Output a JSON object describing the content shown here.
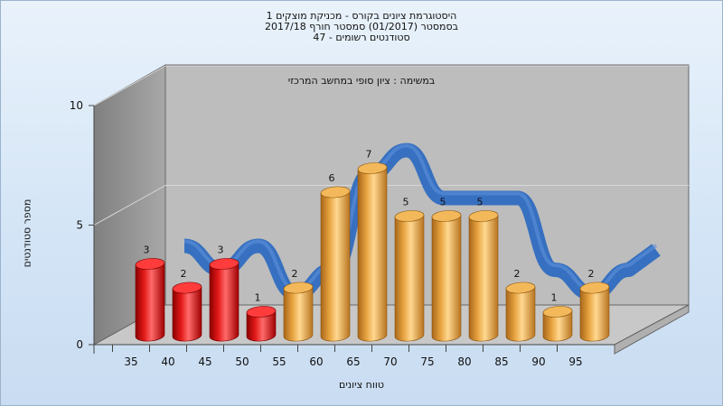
{
  "title": {
    "line1": "היסטוגרמת ציונים בקורס - מכניקת מוצקים 1",
    "line2": "בסמסטר  (01/2017)  סמסטר חורף 2017/18",
    "line3": "סטודנטים רשומים - 47"
  },
  "chart_data": {
    "type": "bar",
    "title": "היסטוגרמת ציונים בקורס - מכניקת מוצקים 1",
    "subtitle": "במשימה : ציון סופי במחשב המרכזי",
    "xlabel": "טווח ציונים",
    "ylabel": "מספר סטודנטים",
    "ylim": [
      0,
      10
    ],
    "yticks": [
      0,
      5,
      10
    ],
    "categories": [
      "35",
      "40",
      "45",
      "50",
      "55",
      "60",
      "65",
      "70",
      "75",
      "80",
      "85",
      "90",
      "95"
    ],
    "values": [
      3,
      2,
      3,
      1,
      2,
      6,
      7,
      5,
      5,
      5,
      2,
      1,
      2
    ],
    "bar_colors": [
      "#e01010",
      "#e01010",
      "#e01010",
      "#e01010",
      "#e8a440",
      "#e8a440",
      "#e8a440",
      "#e8a440",
      "#e8a440",
      "#e8a440",
      "#e8a440",
      "#e8a440",
      "#e8a440"
    ],
    "curve_color": "#2f6cc0",
    "grid": true
  }
}
